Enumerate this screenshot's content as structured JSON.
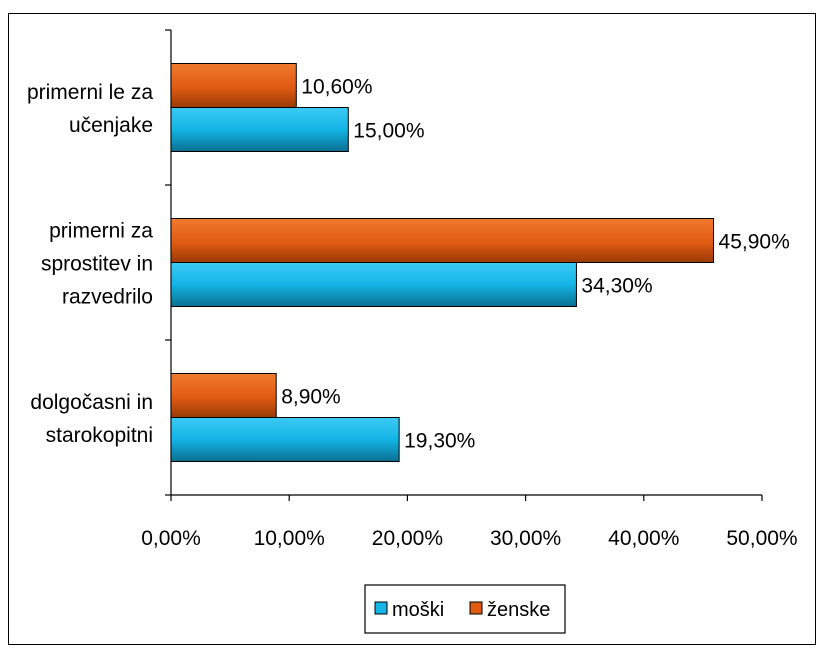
{
  "chart_data": {
    "type": "bar",
    "orientation": "horizontal",
    "categories": [
      [
        "primerni le za",
        "učenjake"
      ],
      [
        "primerni za",
        "sprostitev in",
        "razvedrilo"
      ],
      [
        "dolgočasni in",
        "starokopitni"
      ]
    ],
    "series": [
      {
        "name": "ženske",
        "color": "#e05a12",
        "values": [
          10.6,
          45.9,
          8.9
        ],
        "labels": [
          "10,60%",
          "45,90%",
          "8,90%"
        ]
      },
      {
        "name": "moški",
        "color": "#13b4e6",
        "values": [
          15.0,
          34.3,
          19.3
        ],
        "labels": [
          "15,00%",
          "34,30%",
          "19,30%"
        ]
      }
    ],
    "xlim": [
      0,
      50
    ],
    "xticks": [
      0,
      10,
      20,
      30,
      40,
      50
    ],
    "xtick_labels": [
      "0,00%",
      "10,00%",
      "20,00%",
      "30,00%",
      "40,00%",
      "50,00%"
    ],
    "grid": false,
    "legend": {
      "placement": "bottom",
      "entries": [
        {
          "name": "moški",
          "color": "#13b4e6"
        },
        {
          "name": "ženske",
          "color": "#e05a12"
        }
      ]
    }
  }
}
